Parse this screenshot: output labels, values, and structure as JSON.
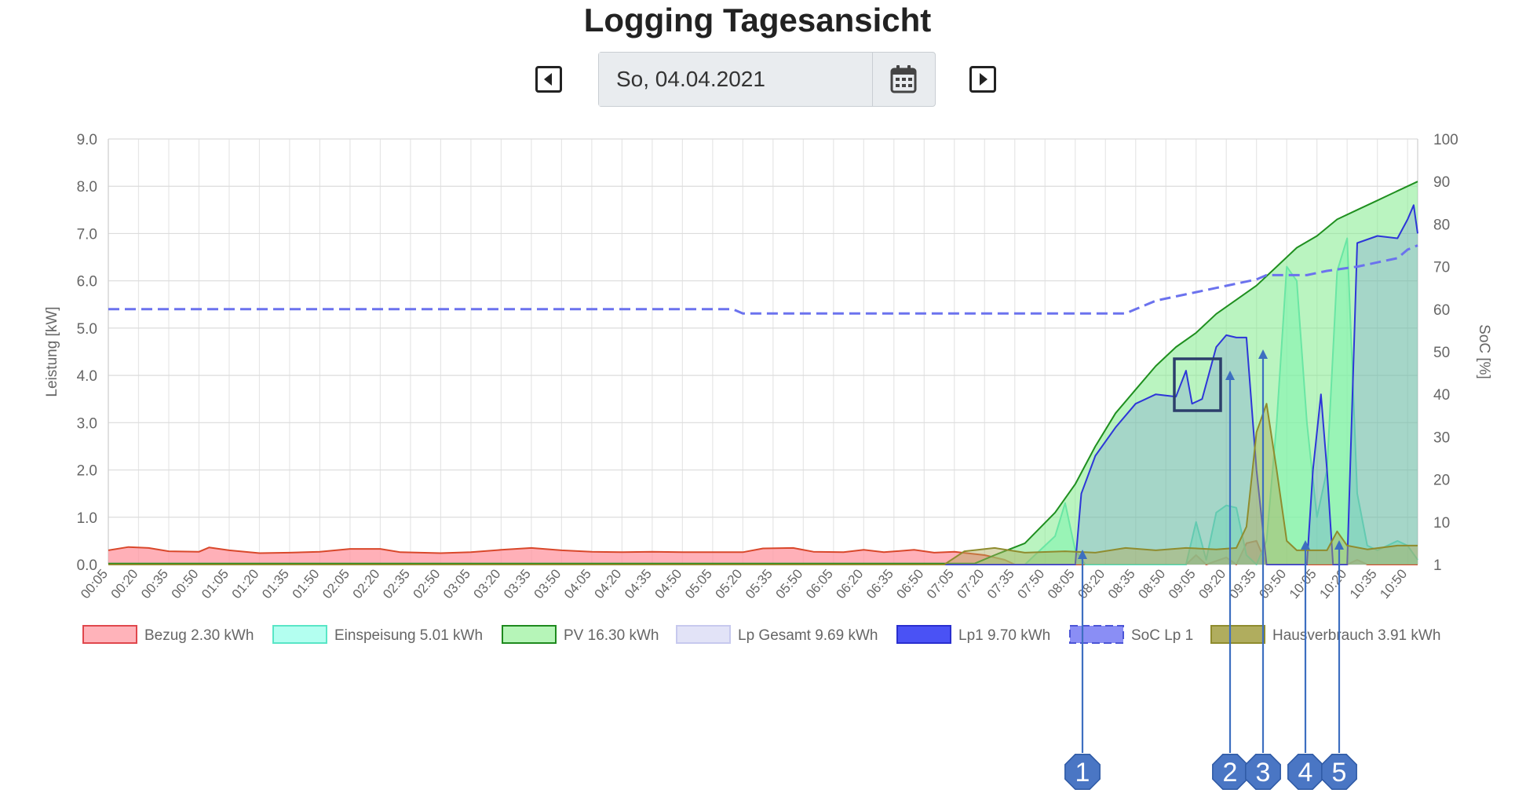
{
  "header": {
    "title": "Logging Tagesansicht"
  },
  "date_picker": {
    "value": "So, 04.04.2021"
  },
  "icons": {
    "prev": "caret-left-square-icon",
    "next": "caret-right-square-icon",
    "calendar": "calendar-icon"
  },
  "markers": [
    "1",
    "2",
    "3",
    "4",
    "5"
  ],
  "chart_data": {
    "type": "area",
    "title": "",
    "xlabel": "",
    "ylabel": "Leistung [kW]",
    "y2label": "SoC [%]",
    "ylim": [
      0,
      9
    ],
    "y2lim": [
      0,
      100
    ],
    "yticks": [
      "0.0",
      "1.0",
      "2.0",
      "3.0",
      "4.0",
      "5.0",
      "6.0",
      "7.0",
      "8.0",
      "9.0"
    ],
    "y2ticks": [
      "1",
      "10",
      "20",
      "30",
      "40",
      "50",
      "60",
      "70",
      "80",
      "90",
      "100"
    ],
    "grid": true,
    "legend_position": "bottom",
    "x_ticks": [
      "00:05",
      "00:20",
      "00:35",
      "00:50",
      "01:05",
      "01:20",
      "01:35",
      "01:50",
      "02:05",
      "02:20",
      "02:35",
      "02:50",
      "03:05",
      "03:20",
      "03:35",
      "03:50",
      "04:05",
      "04:20",
      "04:35",
      "04:50",
      "05:05",
      "05:20",
      "05:35",
      "05:50",
      "06:05",
      "06:20",
      "06:35",
      "06:50",
      "07:05",
      "07:20",
      "07:35",
      "07:50",
      "08:05",
      "08:20",
      "08:35",
      "08:50",
      "09:05",
      "09:20",
      "09:35",
      "09:50",
      "10:05",
      "10:20",
      "10:35",
      "10:50"
    ],
    "x_range": [
      "00:05",
      "10:55"
    ],
    "legend": [
      {
        "label": "Bezug 2.30 kWh",
        "fill": "#ffb3ba",
        "stroke": "#e0474c",
        "dashed": false
      },
      {
        "label": "Einspeisung 5.01 kWh",
        "fill": "#b3fff0",
        "stroke": "#59e6c6",
        "dashed": false
      },
      {
        "label": "PV 16.30 kWh",
        "fill": "#b6f5b8",
        "stroke": "#1e8a1e",
        "dashed": false
      },
      {
        "label": "Lp Gesamt 9.69 kWh",
        "fill": "#e2e3f7",
        "stroke": "#c7c9ee",
        "dashed": false
      },
      {
        "label": "Lp1 9.70 kWh",
        "fill": "#4a52f5",
        "stroke": "#2a2fcf",
        "dashed": false
      },
      {
        "label": "SoC Lp 1",
        "fill": "#8a8ef5",
        "stroke": "#4c55d6",
        "dashed": true
      },
      {
        "label": "Hausverbrauch 3.91 kWh",
        "fill": "#b0ad5e",
        "stroke": "#8f8c2e",
        "dashed": false
      }
    ],
    "series": [
      {
        "name": "Bezug 2.30 kWh",
        "axis": "left",
        "color": "#d9482b",
        "fill": "rgba(255,150,160,0.75)",
        "points": [
          [
            "00:05",
            0.3
          ],
          [
            "00:15",
            0.37
          ],
          [
            "00:25",
            0.35
          ],
          [
            "00:35",
            0.28
          ],
          [
            "00:50",
            0.27
          ],
          [
            "00:55",
            0.36
          ],
          [
            "01:05",
            0.3
          ],
          [
            "01:20",
            0.24
          ],
          [
            "01:35",
            0.25
          ],
          [
            "01:50",
            0.27
          ],
          [
            "02:05",
            0.33
          ],
          [
            "02:20",
            0.33
          ],
          [
            "02:30",
            0.26
          ],
          [
            "02:50",
            0.24
          ],
          [
            "03:05",
            0.26
          ],
          [
            "03:20",
            0.31
          ],
          [
            "03:35",
            0.35
          ],
          [
            "03:50",
            0.3
          ],
          [
            "04:05",
            0.27
          ],
          [
            "04:20",
            0.26
          ],
          [
            "04:35",
            0.27
          ],
          [
            "04:50",
            0.26
          ],
          [
            "05:05",
            0.26
          ],
          [
            "05:20",
            0.26
          ],
          [
            "05:30",
            0.34
          ],
          [
            "05:45",
            0.35
          ],
          [
            "05:55",
            0.27
          ],
          [
            "06:10",
            0.26
          ],
          [
            "06:20",
            0.31
          ],
          [
            "06:30",
            0.26
          ],
          [
            "06:45",
            0.31
          ],
          [
            "06:55",
            0.25
          ],
          [
            "07:05",
            0.27
          ],
          [
            "07:20",
            0.2
          ],
          [
            "07:30",
            0.1
          ],
          [
            "07:35",
            0.0
          ],
          [
            "09:00",
            0.0
          ],
          [
            "09:05",
            0.2
          ],
          [
            "09:10",
            0.0
          ],
          [
            "09:20",
            0.15
          ],
          [
            "09:25",
            0.0
          ],
          [
            "09:30",
            0.45
          ],
          [
            "09:35",
            0.5
          ],
          [
            "09:40",
            0.0
          ],
          [
            "10:20",
            0.0
          ],
          [
            "10:25",
            0.1
          ],
          [
            "10:30",
            0.0
          ],
          [
            "10:55",
            0.0
          ]
        ]
      },
      {
        "name": "Einspeisung 5.01 kWh",
        "axis": "left",
        "color": "#4fe0c0",
        "fill": "rgba(120,255,215,0.55)",
        "points": [
          [
            "00:05",
            0
          ],
          [
            "07:40",
            0
          ],
          [
            "07:55",
            0.6
          ],
          [
            "08:00",
            1.3
          ],
          [
            "08:05",
            0.3
          ],
          [
            "08:10",
            0
          ],
          [
            "09:00",
            0
          ],
          [
            "09:05",
            0.9
          ],
          [
            "09:10",
            0.1
          ],
          [
            "09:15",
            1.1
          ],
          [
            "09:20",
            1.25
          ],
          [
            "09:25",
            1.2
          ],
          [
            "09:30",
            0.2
          ],
          [
            "09:35",
            0
          ],
          [
            "09:40",
            0.5
          ],
          [
            "09:45",
            3.0
          ],
          [
            "09:50",
            6.3
          ],
          [
            "09:55",
            6.0
          ],
          [
            "10:00",
            3.0
          ],
          [
            "10:05",
            1.0
          ],
          [
            "10:10",
            2.0
          ],
          [
            "10:15",
            6.2
          ],
          [
            "10:20",
            6.9
          ],
          [
            "10:25",
            1.5
          ],
          [
            "10:30",
            0.4
          ],
          [
            "10:35",
            0.3
          ],
          [
            "10:45",
            0.5
          ],
          [
            "10:50",
            0.4
          ],
          [
            "10:55",
            0.1
          ]
        ]
      },
      {
        "name": "PV 16.30 kWh",
        "axis": "left",
        "color": "#1f8f1f",
        "fill": "rgba(130,235,140,0.55)",
        "points": [
          [
            "00:05",
            0.02
          ],
          [
            "07:15",
            0.02
          ],
          [
            "07:25",
            0.2
          ],
          [
            "07:40",
            0.45
          ],
          [
            "07:55",
            1.1
          ],
          [
            "08:05",
            1.7
          ],
          [
            "08:15",
            2.5
          ],
          [
            "08:25",
            3.2
          ],
          [
            "08:35",
            3.7
          ],
          [
            "08:45",
            4.2
          ],
          [
            "08:55",
            4.6
          ],
          [
            "09:05",
            4.9
          ],
          [
            "09:15",
            5.3
          ],
          [
            "09:25",
            5.6
          ],
          [
            "09:35",
            5.9
          ],
          [
            "09:45",
            6.3
          ],
          [
            "09:55",
            6.7
          ],
          [
            "10:05",
            6.95
          ],
          [
            "10:15",
            7.3
          ],
          [
            "10:25",
            7.5
          ],
          [
            "10:35",
            7.7
          ],
          [
            "10:45",
            7.9
          ],
          [
            "10:55",
            8.1
          ]
        ]
      },
      {
        "name": "Lp1 9.70 kWh",
        "axis": "left",
        "color": "#2d36d8",
        "fill": "rgba(70,80,240,0.18)",
        "points": [
          [
            "00:05",
            0
          ],
          [
            "08:05",
            0
          ],
          [
            "08:08",
            1.5
          ],
          [
            "08:15",
            2.3
          ],
          [
            "08:25",
            2.9
          ],
          [
            "08:35",
            3.4
          ],
          [
            "08:45",
            3.6
          ],
          [
            "08:55",
            3.55
          ],
          [
            "09:00",
            4.1
          ],
          [
            "09:03",
            3.4
          ],
          [
            "09:08",
            3.5
          ],
          [
            "09:15",
            4.6
          ],
          [
            "09:20",
            4.85
          ],
          [
            "09:25",
            4.8
          ],
          [
            "09:30",
            4.8
          ],
          [
            "09:35",
            2.0
          ],
          [
            "09:40",
            0
          ],
          [
            "10:00",
            0
          ],
          [
            "10:03",
            2.0
          ],
          [
            "10:07",
            3.6
          ],
          [
            "10:10",
            2.0
          ],
          [
            "10:13",
            0
          ],
          [
            "10:20",
            0
          ],
          [
            "10:25",
            6.8
          ],
          [
            "10:35",
            6.95
          ],
          [
            "10:45",
            6.9
          ],
          [
            "10:50",
            7.3
          ],
          [
            "10:53",
            7.6
          ],
          [
            "10:55",
            7.0
          ]
        ]
      },
      {
        "name": "Hausverbrauch 3.91 kWh",
        "axis": "left",
        "color": "#8f8c2e",
        "fill": "rgba(175,170,90,0.45)",
        "points": [
          [
            "00:05",
            0
          ],
          [
            "07:00",
            0
          ],
          [
            "07:10",
            0.28
          ],
          [
            "07:25",
            0.35
          ],
          [
            "07:40",
            0.25
          ],
          [
            "08:00",
            0.28
          ],
          [
            "08:15",
            0.25
          ],
          [
            "08:30",
            0.35
          ],
          [
            "08:45",
            0.3
          ],
          [
            "09:00",
            0.35
          ],
          [
            "09:15",
            0.32
          ],
          [
            "09:25",
            0.35
          ],
          [
            "09:30",
            0.8
          ],
          [
            "09:35",
            2.8
          ],
          [
            "09:40",
            3.4
          ],
          [
            "09:45",
            2.0
          ],
          [
            "09:50",
            0.5
          ],
          [
            "09:55",
            0.3
          ],
          [
            "10:10",
            0.3
          ],
          [
            "10:15",
            0.7
          ],
          [
            "10:20",
            0.4
          ],
          [
            "10:30",
            0.32
          ],
          [
            "10:45",
            0.4
          ],
          [
            "10:55",
            0.4
          ]
        ]
      },
      {
        "name": "SoC Lp 1",
        "axis": "right",
        "color": "#6b72ee",
        "fill": "none",
        "dashed": true,
        "points": [
          [
            "00:05",
            60
          ],
          [
            "05:15",
            60
          ],
          [
            "05:20",
            59
          ],
          [
            "08:30",
            59
          ],
          [
            "08:35",
            60
          ],
          [
            "08:40",
            61
          ],
          [
            "08:45",
            62
          ],
          [
            "08:55",
            63
          ],
          [
            "09:05",
            64
          ],
          [
            "09:15",
            65
          ],
          [
            "09:25",
            66
          ],
          [
            "09:35",
            67
          ],
          [
            "09:40",
            68
          ],
          [
            "10:00",
            68
          ],
          [
            "10:10",
            69
          ],
          [
            "10:25",
            70
          ],
          [
            "10:35",
            71
          ],
          [
            "10:45",
            72
          ],
          [
            "10:50",
            74
          ],
          [
            "10:55",
            75
          ]
        ]
      }
    ]
  }
}
